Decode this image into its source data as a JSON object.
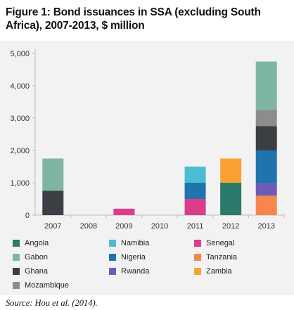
{
  "title": "Figure 1: Bond issuances in SSA (excluding South Africa), 2007-2013, $ million",
  "source": "Source: Hou et al. (2014).",
  "chart_data": {
    "type": "bar",
    "stacked": true,
    "title": "Figure 1: Bond issuances in SSA (excluding South Africa), 2007-2013, $ million",
    "xlabel": "",
    "ylabel": "",
    "ylim": [
      0,
      5000
    ],
    "yticks": [
      0,
      1000,
      2000,
      3000,
      4000,
      5000
    ],
    "ytick_labels": [
      "0",
      "1,000",
      "2,000",
      "3,000",
      "4,000",
      "5,000"
    ],
    "grid": false,
    "legend_position": "bottom",
    "categories": [
      "2007",
      "2008",
      "2009",
      "2010",
      "2011",
      "2012",
      "2013"
    ],
    "series": [
      {
        "name": "Angola",
        "color": "#2b7a6c",
        "values": [
          0,
          0,
          0,
          0,
          0,
          1000,
          0
        ]
      },
      {
        "name": "Namibia",
        "color": "#4dbcd3",
        "values": [
          0,
          0,
          0,
          0,
          500,
          0,
          0
        ]
      },
      {
        "name": "Senegal",
        "color": "#d93d8c",
        "values": [
          0,
          0,
          200,
          0,
          500,
          0,
          0
        ]
      },
      {
        "name": "Gabon",
        "color": "#7fb5a5",
        "values": [
          1000,
          0,
          0,
          0,
          0,
          0,
          1500
        ]
      },
      {
        "name": "Nigeria",
        "color": "#1f74ad",
        "values": [
          0,
          0,
          0,
          0,
          500,
          0,
          1000
        ]
      },
      {
        "name": "Tanzania",
        "color": "#f7864d",
        "values": [
          0,
          0,
          0,
          0,
          0,
          0,
          600
        ]
      },
      {
        "name": "Ghana",
        "color": "#3b3e42",
        "values": [
          750,
          0,
          0,
          0,
          0,
          0,
          750
        ]
      },
      {
        "name": "Rwanda",
        "color": "#6c5cb6",
        "values": [
          0,
          0,
          0,
          0,
          0,
          0,
          400
        ]
      },
      {
        "name": "Zambia",
        "color": "#f9a233",
        "values": [
          0,
          0,
          0,
          0,
          0,
          750,
          0
        ]
      },
      {
        "name": "Mozambique",
        "color": "#8c8c8c",
        "values": [
          0,
          0,
          0,
          0,
          0,
          0,
          500
        ]
      }
    ],
    "stack_order": {
      "2007": [
        "Ghana",
        "Gabon"
      ],
      "2009": [
        "Senegal"
      ],
      "2011": [
        "Senegal",
        "Nigeria",
        "Namibia"
      ],
      "2012": [
        "Angola",
        "Zambia"
      ],
      "2013": [
        "Tanzania",
        "Rwanda",
        "Nigeria",
        "Ghana",
        "Mozambique",
        "Gabon"
      ]
    }
  }
}
